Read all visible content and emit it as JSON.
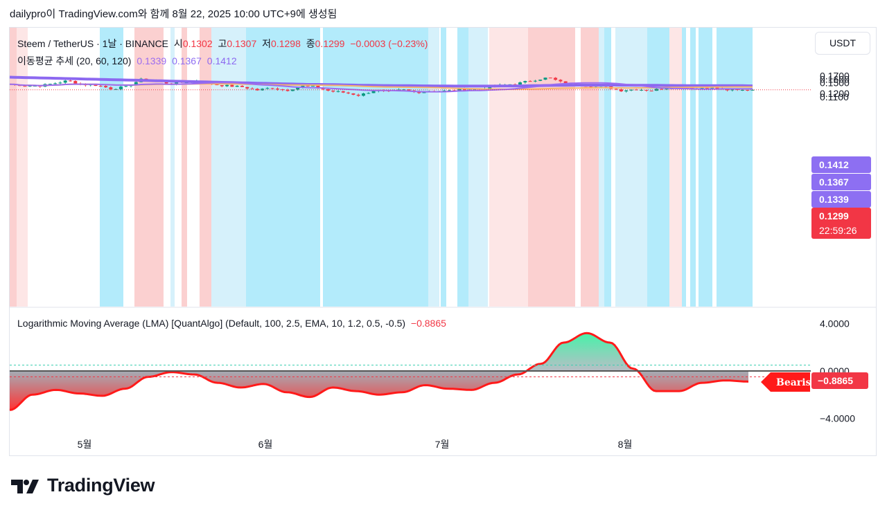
{
  "header": {
    "text": "dailypro이 TradingView.com와 함께 8월 22, 2025 10:00 UTC+9에 생성됨"
  },
  "legend": {
    "symbol": "Steem / TetherUS · 1날 · BINANCE",
    "o_label": "시",
    "o_value": "0.1302",
    "h_label": "고",
    "h_value": "0.1307",
    "l_label": "저",
    "l_value": "0.1298",
    "c_label": "종",
    "c_value": "0.1299",
    "change": "−0.0003 (−0.23%)",
    "ma_name": "이동평균 추세 (20, 60, 120)",
    "ma20": "0.1339",
    "ma60": "0.1367",
    "ma120": "0.1412"
  },
  "lma_legend": {
    "name": "Logarithmic Moving Average (LMA) [QuantAlgo] (Default, 100, 2.5, EMA, 10, 1.2, 0.5, -0.5)",
    "value": "−0.8865"
  },
  "currency_button": "USDT",
  "price_badges": {
    "ma120": "0.1412",
    "ma60": "0.1367",
    "ma20": "0.1339",
    "last": "0.1299",
    "countdown": "22:59:26"
  },
  "lma_badges": {
    "value": "−0.8865",
    "signal": "Bearish"
  },
  "colors": {
    "up": "#089981",
    "down": "#f23645",
    "ma20": "#9b6cf0",
    "ma60": "#8f6ef2",
    "ma120": "#8c68f0",
    "bull_bg": "#b3ebfb",
    "bear_bg": "#fbd0d0",
    "ma_badge": "#8d6ff2"
  },
  "brand": {
    "name": "TradingView",
    "icon": "tradingview-logo-icon"
  },
  "chart_data": [
    {
      "type": "candlestick",
      "title": "Steem / TetherUS · 1날 · BINANCE",
      "x_tick_labels": [
        "5월",
        "6월",
        "7월",
        "8월"
      ],
      "y_tick_labels": [
        "0.1700",
        "0.1600",
        "0.1500",
        "0.1200",
        "0.1100"
      ],
      "ylim": [
        0.1035,
        0.1835
      ],
      "x_range_months": [
        "2025-04",
        "2025-08"
      ],
      "series": [
        {
          "name": "이동평균 추세 20",
          "last": 0.1339
        },
        {
          "name": "이동평균 추세 60",
          "last": 0.1367
        },
        {
          "name": "이동평균 추세 120",
          "last": 0.1412
        }
      ],
      "approx_close_path": [
        0.146,
        0.142,
        0.141,
        0.148,
        0.156,
        0.145,
        0.143,
        0.133,
        0.138,
        0.159,
        0.155,
        0.148,
        0.152,
        0.157,
        0.145,
        0.141,
        0.138,
        0.129,
        0.136,
        0.128,
        0.141,
        0.138,
        0.126,
        0.122,
        0.114,
        0.128,
        0.124,
        0.13,
        0.123,
        0.128,
        0.126,
        0.132,
        0.131,
        0.139,
        0.144,
        0.149,
        0.158,
        0.165,
        0.149,
        0.144,
        0.142,
        0.137,
        0.128,
        0.132,
        0.128,
        0.135,
        0.139,
        0.133,
        0.138,
        0.13,
        0.128,
        0.1299
      ],
      "grid": false
    },
    {
      "type": "area",
      "title": "Logarithmic Moving Average (LMA) [QuantAlgo] (Default, 100, 2.5, EMA, 10, 1.2, 0.5, -0.5)",
      "y_tick_labels": [
        "4.0000",
        "0.0000",
        "−4.0000"
      ],
      "ylim": [
        -5.3,
        5.4
      ],
      "last": -0.8865,
      "approx_series": [
        -3.3,
        -2.0,
        -1.6,
        -1.9,
        -2.1,
        -1.5,
        -0.5,
        -0.1,
        -0.3,
        -1.0,
        -1.4,
        -1.1,
        -1.8,
        -2.2,
        -1.4,
        -1.7,
        -2.0,
        -1.8,
        -1.2,
        -1.5,
        -1.6,
        -1.0,
        -0.3,
        0.6,
        2.4,
        3.2,
        2.4,
        0.2,
        -1.7,
        -1.7,
        -1.0,
        -0.8,
        -0.9
      ],
      "grid": false
    }
  ]
}
